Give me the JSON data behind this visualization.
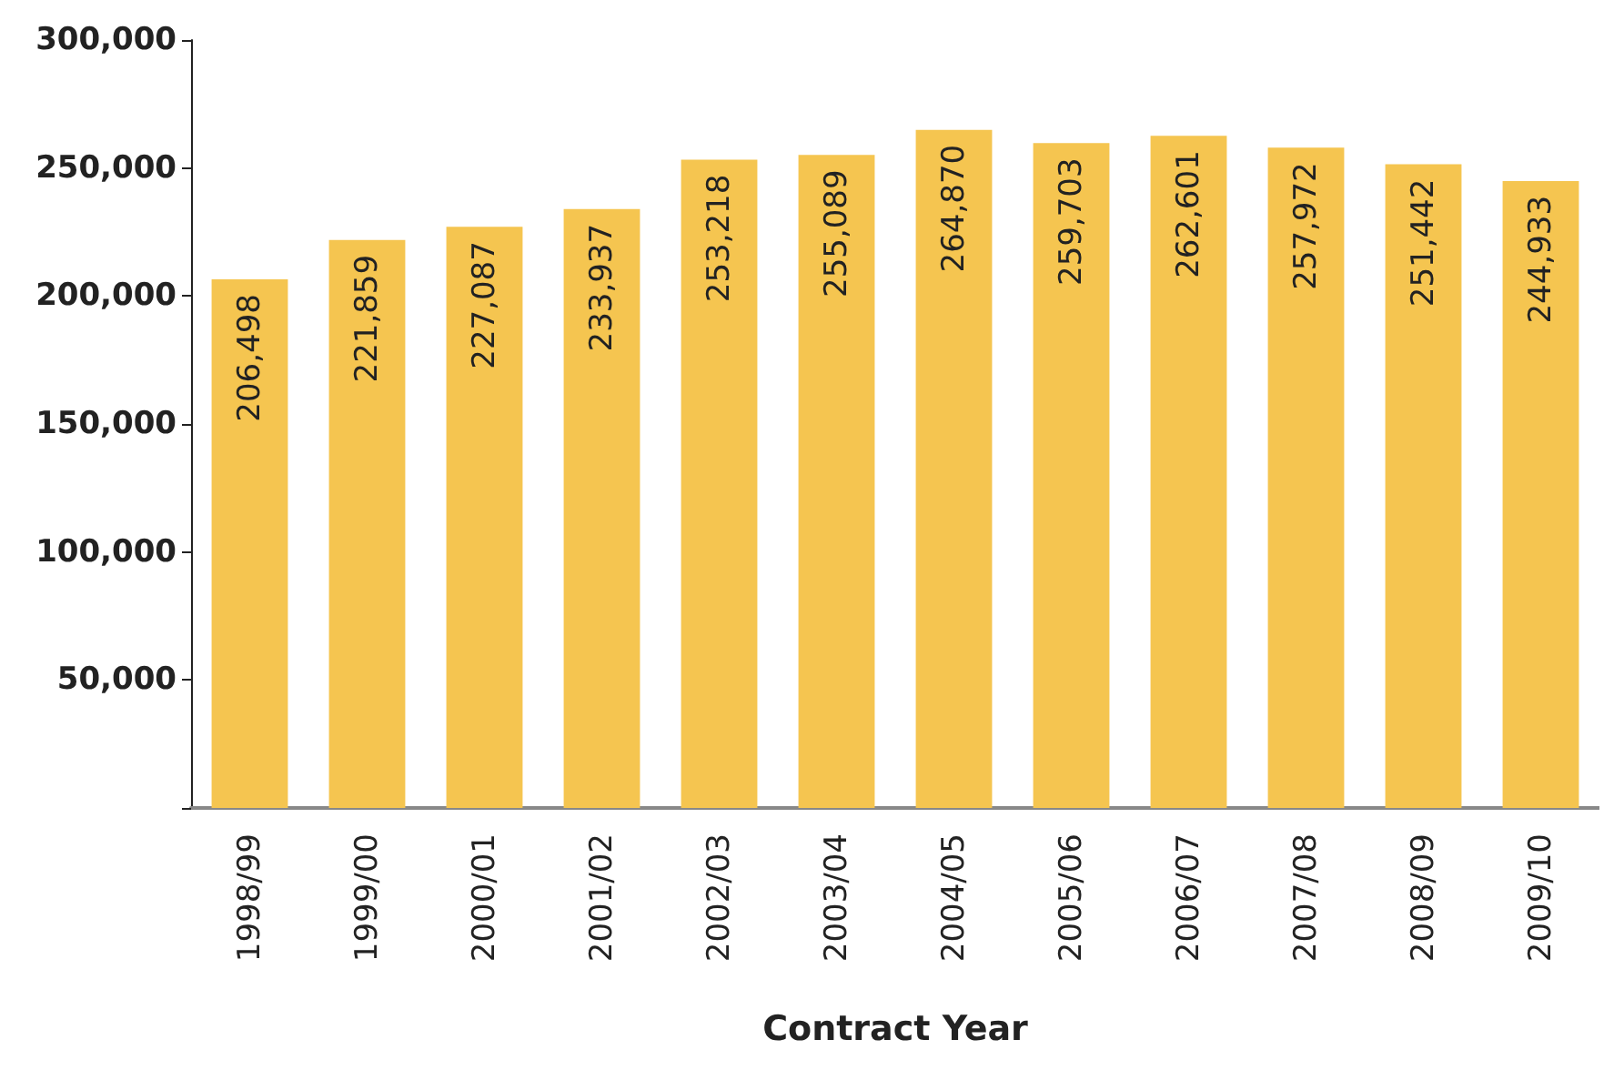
{
  "chart_data": {
    "type": "bar",
    "xlabel": "Contract Year",
    "categories": [
      "1998/99",
      "1999/00",
      "2000/01",
      "2001/02",
      "2002/03",
      "2003/04",
      "2004/05",
      "2005/06",
      "2006/07",
      "2007/08",
      "2008/09",
      "2009/10"
    ],
    "values": [
      206498,
      221859,
      227087,
      233937,
      253218,
      255089,
      264870,
      259703,
      262601,
      257972,
      251442,
      244933
    ],
    "value_labels": [
      "206,498",
      "221,859",
      "227,087",
      "233,937",
      "253,218",
      "255,089",
      "264,870",
      "259,703",
      "262,601",
      "257,972",
      "251,442",
      "244,933"
    ],
    "color": "#f5c550",
    "ylim": [
      0,
      300000
    ],
    "yticks": [
      {
        "value": 0,
        "label": null
      },
      {
        "value": 50000,
        "label": "50,000"
      },
      {
        "value": 100000,
        "label": "100,000"
      },
      {
        "value": 150000,
        "label": "150,000"
      },
      {
        "value": 200000,
        "label": "200,000"
      },
      {
        "value": 250000,
        "label": "250,000"
      },
      {
        "value": 300000,
        "label": "300,000"
      }
    ],
    "grid": false
  }
}
